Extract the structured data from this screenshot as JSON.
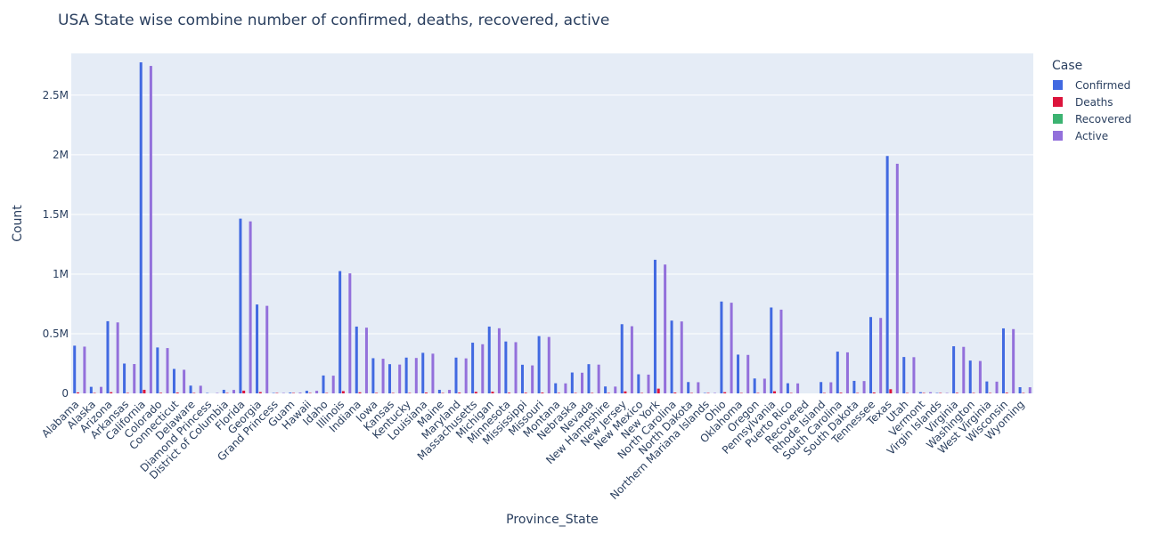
{
  "chart_data": {
    "type": "bar",
    "title": "USA State wise combine number of confirmed, deaths, recovered, active",
    "xlabel": "Province_State",
    "ylabel": "Count",
    "ylim": [
      0,
      2850000
    ],
    "yticks": [
      0,
      500000,
      1000000,
      1500000,
      2000000,
      2500000
    ],
    "ytick_labels": [
      "0",
      "0.5M",
      "1M",
      "1.5M",
      "2M",
      "2.5M"
    ],
    "grid": true,
    "legend_title": "Case",
    "legend_position": "top-right",
    "categories": [
      "Alabama",
      "Alaska",
      "Arizona",
      "Arkansas",
      "California",
      "Colorado",
      "Connecticut",
      "Delaware",
      "Diamond Princess",
      "District of Columbia",
      "Florida",
      "Georgia",
      "Grand Princess",
      "Guam",
      "Hawaii",
      "Idaho",
      "Illinois",
      "Indiana",
      "Iowa",
      "Kansas",
      "Kentucky",
      "Louisiana",
      "Maine",
      "Maryland",
      "Massachusetts",
      "Michigan",
      "Minnesota",
      "Mississippi",
      "Missouri",
      "Montana",
      "Nebraska",
      "Nevada",
      "New Hampshire",
      "New Jersey",
      "New Mexico",
      "New York",
      "North Carolina",
      "North Dakota",
      "Northern Mariana Islands",
      "Ohio",
      "Oklahoma",
      "Oregon",
      "Pennsylvania",
      "Puerto Rico",
      "Recovered",
      "Rhode Island",
      "South Carolina",
      "South Dakota",
      "Tennessee",
      "Texas",
      "Utah",
      "Vermont",
      "Virgin Islands",
      "Virginia",
      "Washington",
      "West Virginia",
      "Wisconsin",
      "Wyoming"
    ],
    "series": [
      {
        "name": "Confirmed",
        "color": "#4169e1",
        "values": [
          400000,
          55000,
          605000,
          250000,
          2775000,
          385000,
          205000,
          65000,
          50,
          30000,
          1465000,
          745000,
          100,
          7000,
          22000,
          150000,
          1025000,
          560000,
          295000,
          245000,
          300000,
          340000,
          30000,
          300000,
          425000,
          560000,
          435000,
          240000,
          480000,
          85000,
          175000,
          245000,
          58000,
          580000,
          160000,
          1120000,
          610000,
          95000,
          130,
          770000,
          325000,
          125000,
          720000,
          85000,
          0,
          95000,
          350000,
          105000,
          640000,
          1990000,
          305000,
          10000,
          2000,
          395000,
          275000,
          100000,
          545000,
          52000
        ]
      },
      {
        "name": "Deaths",
        "color": "#dc143c",
        "values": [
          8000,
          300,
          10000,
          4000,
          30000,
          5000,
          7000,
          1000,
          0,
          800,
          23000,
          11000,
          3,
          100,
          300,
          1500,
          19000,
          9000,
          4500,
          3500,
          3000,
          7000,
          500,
          6500,
          13000,
          14000,
          5700,
          5500,
          7000,
          1100,
          1800,
          4000,
          1000,
          17000,
          2700,
          40000,
          7000,
          1400,
          2,
          10000,
          2500,
          1600,
          18000,
          1200,
          0,
          2000,
          6000,
          1700,
          7500,
          35000,
          1500,
          200,
          25,
          5000,
          3500,
          1600,
          6000,
          600
        ]
      },
      {
        "name": "Recovered",
        "color": "#3cb371",
        "values": [
          0,
          0,
          0,
          0,
          0,
          0,
          0,
          0,
          0,
          0,
          0,
          0,
          0,
          0,
          0,
          0,
          0,
          0,
          0,
          0,
          0,
          0,
          0,
          0,
          0,
          0,
          0,
          0,
          0,
          0,
          0,
          0,
          0,
          0,
          0,
          0,
          0,
          0,
          0,
          0,
          0,
          0,
          0,
          0,
          0,
          0,
          0,
          0,
          0,
          0,
          0,
          0,
          0,
          0,
          0,
          0,
          0,
          0
        ]
      },
      {
        "name": "Active",
        "color": "#9370db",
        "values": [
          392000,
          54700,
          595000,
          246000,
          2745000,
          380000,
          198000,
          64000,
          40,
          29200,
          1442000,
          734000,
          90,
          6900,
          21700,
          148500,
          1006000,
          551000,
          290500,
          241500,
          297000,
          333000,
          29500,
          293500,
          412000,
          546000,
          429300,
          234500,
          473000,
          83900,
          173200,
          241000,
          57000,
          563000,
          157300,
          1080000,
          603000,
          93600,
          128,
          760000,
          322500,
          123400,
          702000,
          83800,
          0,
          93000,
          344000,
          103300,
          632500,
          1925000,
          303500,
          9800,
          1975,
          390000,
          271500,
          98400,
          539000,
          51400
        ]
      }
    ]
  }
}
